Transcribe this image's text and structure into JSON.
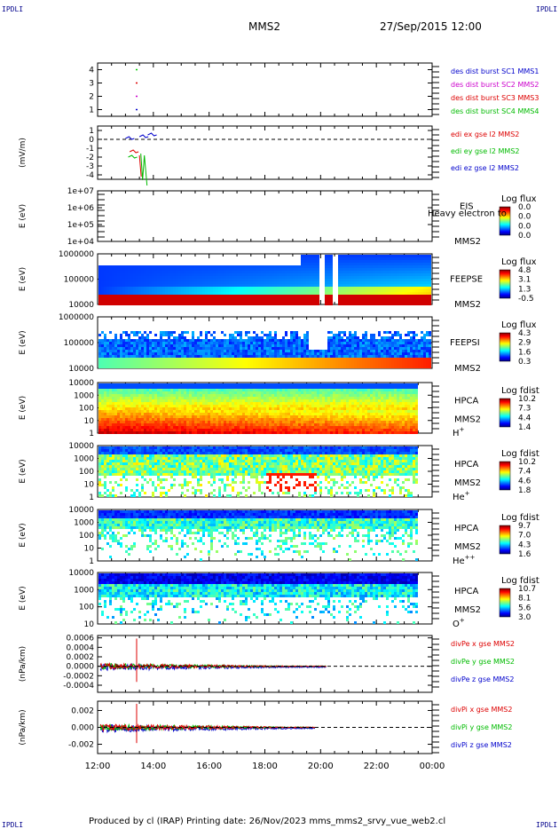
{
  "header": {
    "corner_tl": "IPDLI",
    "corner_tr": "IPDLI",
    "spacecraft": "MMS2",
    "datetime": "27/Sep/2015 12:00"
  },
  "footer": {
    "text": "Produced by cl (IRAP)   Printing date: 26/Nov/2023   mms_mms2_srvy_vue_web2.cl",
    "corner_bl": "IPDLI",
    "corner_br": "IPDLI"
  },
  "chart_data": [
    {
      "type": "scatter",
      "panel": "burst",
      "yticks": [
        "1",
        "2",
        "3",
        "4"
      ],
      "ylim": [
        0.5,
        4.5
      ],
      "legend": [
        {
          "label": "des dist burst SC1 MMS1",
          "color": "#0000cc"
        },
        {
          "label": "des dist burst SC2 MMS2",
          "color": "#cc00cc"
        },
        {
          "label": "des dist burst SC3 MMS3",
          "color": "#dd0000"
        },
        {
          "label": "des dist burst SC4 MMS4",
          "color": "#00bb00"
        }
      ],
      "points": [
        {
          "t": 13.4,
          "y": 4,
          "c": "#00cc00"
        },
        {
          "t": 13.4,
          "y": 3,
          "c": "#dd0000"
        },
        {
          "t": 13.4,
          "y": 2,
          "c": "#cc00cc"
        },
        {
          "t": 13.4,
          "y": 1,
          "c": "#0000cc"
        }
      ]
    },
    {
      "type": "line",
      "panel": "edi",
      "ylabel": "(mV/m)",
      "yticks": [
        "1",
        "0",
        "-1",
        "-2",
        "-3",
        "-4"
      ],
      "ylim": [
        -4.5,
        1.5
      ],
      "legend": [
        {
          "label": "edi ex gse l2 MMS2",
          "color": "#dd0000"
        },
        {
          "label": "edi ey gse l2 MMS2",
          "color": "#00bb00"
        },
        {
          "label": "edi ez gse l2 MMS2",
          "color": "#0000cc"
        }
      ]
    },
    {
      "type": "heatmap",
      "panel": "eis",
      "ylabel": "E (eV)",
      "yticks": [
        "1e+07",
        "1e+06",
        "1e+05",
        "1e+04"
      ],
      "instrument": "EIS",
      "sc": "MMS2",
      "cb_title": "Log flux",
      "cb_ticks": [
        "0.0",
        "0.0",
        "0.0",
        "0.0"
      ],
      "overlay": "Heavy electron to"
    },
    {
      "type": "heatmap",
      "panel": "feepse",
      "ylabel": "E (eV)",
      "yticks": [
        "1000000",
        "100000",
        "10000"
      ],
      "instrument": "FEEPSE",
      "sc": "MMS2",
      "cb_title": "Log flux",
      "cb_ticks": [
        "4.8",
        "3.1",
        "1.3",
        "-0.5"
      ]
    },
    {
      "type": "heatmap",
      "panel": "feepsi",
      "ylabel": "E (eV)",
      "yticks": [
        "1000000",
        "100000",
        "10000"
      ],
      "instrument": "FEEPSI",
      "sc": "MMS2",
      "cb_title": "Log flux",
      "cb_ticks": [
        "4.3",
        "2.9",
        "1.6",
        "0.3"
      ]
    },
    {
      "type": "heatmap",
      "panel": "hpca_h",
      "ylabel": "E (eV)",
      "yticks": [
        "10000",
        "1000",
        "100",
        "10",
        "1"
      ],
      "instrument": "HPCA",
      "sc": "MMS2",
      "species": "H",
      "charge": "+",
      "cb_title": "Log fdist",
      "cb_ticks": [
        "10.2",
        "7.3",
        "4.4",
        "1.4"
      ]
    },
    {
      "type": "heatmap",
      "panel": "hpca_he1",
      "ylabel": "E (eV)",
      "yticks": [
        "10000",
        "1000",
        "100",
        "10",
        "1"
      ],
      "instrument": "HPCA",
      "sc": "MMS2",
      "species": "He",
      "charge": "+",
      "cb_title": "Log fdist",
      "cb_ticks": [
        "10.2",
        "7.4",
        "4.6",
        "1.8"
      ]
    },
    {
      "type": "heatmap",
      "panel": "hpca_he2",
      "ylabel": "E (eV)",
      "yticks": [
        "10000",
        "1000",
        "100",
        "10",
        "1"
      ],
      "instrument": "HPCA",
      "sc": "MMS2",
      "species": "He",
      "charge": "++",
      "cb_title": "Log fdist",
      "cb_ticks": [
        "9.7",
        "7.0",
        "4.3",
        "1.6"
      ]
    },
    {
      "type": "heatmap",
      "panel": "hpca_o",
      "ylabel": "E (eV)",
      "yticks": [
        "10000",
        "1000",
        "100",
        "10"
      ],
      "instrument": "HPCA",
      "sc": "MMS2",
      "species": "O",
      "charge": "+",
      "cb_title": "Log fdist",
      "cb_ticks": [
        "10.7",
        "8.1",
        "5.6",
        "3.0"
      ]
    },
    {
      "type": "line",
      "panel": "divpe",
      "ylabel": "(nPa/km)",
      "yticks": [
        "0.0006",
        "0.0004",
        "0.0002",
        "0.0000",
        "-0.0002",
        "-0.0004"
      ],
      "ylim": [
        -0.00055,
        0.00065
      ],
      "legend": [
        {
          "label": "divPe x gse MMS2",
          "color": "#dd0000"
        },
        {
          "label": "divPe y gse MMS2",
          "color": "#00bb00"
        },
        {
          "label": "divPe z gse MMS2",
          "color": "#0000cc"
        }
      ]
    },
    {
      "type": "line",
      "panel": "divpi",
      "ylabel": "(nPa/km)",
      "yticks": [
        "0.002",
        "0.000",
        "-0.002"
      ],
      "ylim": [
        -0.0031,
        0.0031
      ],
      "legend": [
        {
          "label": "divPi x gse MMS2",
          "color": "#dd0000"
        },
        {
          "label": "divPi y gse MMS2",
          "color": "#00bb00"
        },
        {
          "label": "divPi z gse MMS2",
          "color": "#0000cc"
        }
      ]
    }
  ],
  "xaxis": {
    "ticks": [
      "12:00",
      "14:00",
      "16:00",
      "18:00",
      "20:00",
      "22:00",
      "00:00"
    ],
    "range": [
      12,
      24
    ]
  }
}
